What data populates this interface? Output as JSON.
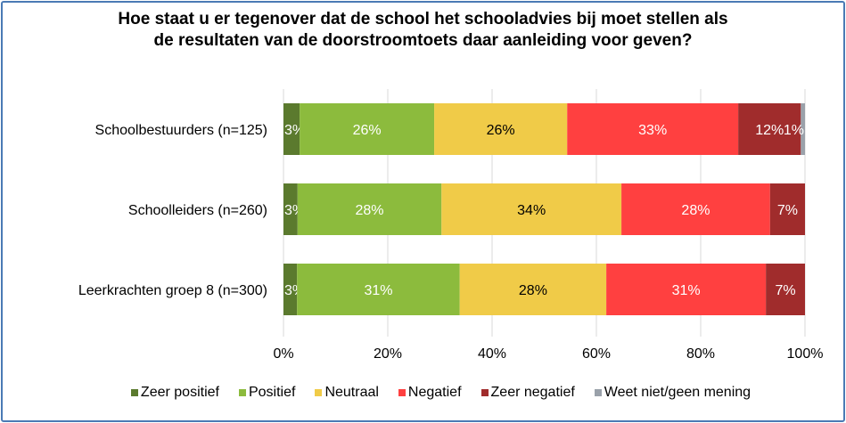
{
  "chart_data": {
    "type": "bar",
    "orientation": "horizontal",
    "stacked": "percent",
    "title": "Hoe staat u er tegenover dat de school het schooladvies bij moet stellen als de resultaten van de doorstroomtoets daar aanleiding voor geven?",
    "title_lines": [
      "Hoe staat u er tegenover dat de school het schooladvies bij moet stellen als",
      "de resultaten van de doorstroomtoets daar aanleiding voor geven?"
    ],
    "categories": [
      "Schoolbestuurders (n=125)",
      "Schoolleiders (n=260)",
      "Leerkrachten groep 8 (n=300)"
    ],
    "series": [
      {
        "name": "Zeer positief",
        "color": "#5b7a2e",
        "label_color": "#ffffff",
        "values": [
          3.1,
          2.7,
          2.6
        ],
        "labels": [
          "3%",
          "3%",
          "3%"
        ]
      },
      {
        "name": "Positief",
        "color": "#8cbb3d",
        "label_color": "#ffffff",
        "values": [
          25.8,
          27.6,
          31.2
        ],
        "labels": [
          "26%",
          "28%",
          "31%"
        ]
      },
      {
        "name": "Neutraal",
        "color": "#f0cb48",
        "label_color": "#000000",
        "values": [
          25.5,
          34.5,
          28.1
        ],
        "labels": [
          "26%",
          "34%",
          "28%"
        ]
      },
      {
        "name": "Negatief",
        "color": "#ff4040",
        "label_color": "#ffffff",
        "values": [
          32.8,
          28.5,
          30.6
        ],
        "labels": [
          "33%",
          "28%",
          "31%"
        ]
      },
      {
        "name": "Zeer negatief",
        "color": "#a02c2c",
        "label_color": "#ffffff",
        "values": [
          12.0,
          6.7,
          7.5
        ],
        "labels": [
          "12%",
          "7%",
          "7%"
        ]
      },
      {
        "name": "Weet niet/geen mening",
        "color": "#9aa1aa",
        "label_color": "#ffffff",
        "values": [
          0.8,
          0,
          0
        ],
        "labels": [
          "1%",
          "",
          ""
        ]
      }
    ],
    "xlim": [
      0,
      100
    ],
    "xticks": [
      "0%",
      "20%",
      "40%",
      "60%",
      "80%",
      "100%"
    ],
    "xtick_values": [
      0,
      20,
      40,
      60,
      80,
      100
    ],
    "grid": true,
    "legend_position": "bottom"
  }
}
